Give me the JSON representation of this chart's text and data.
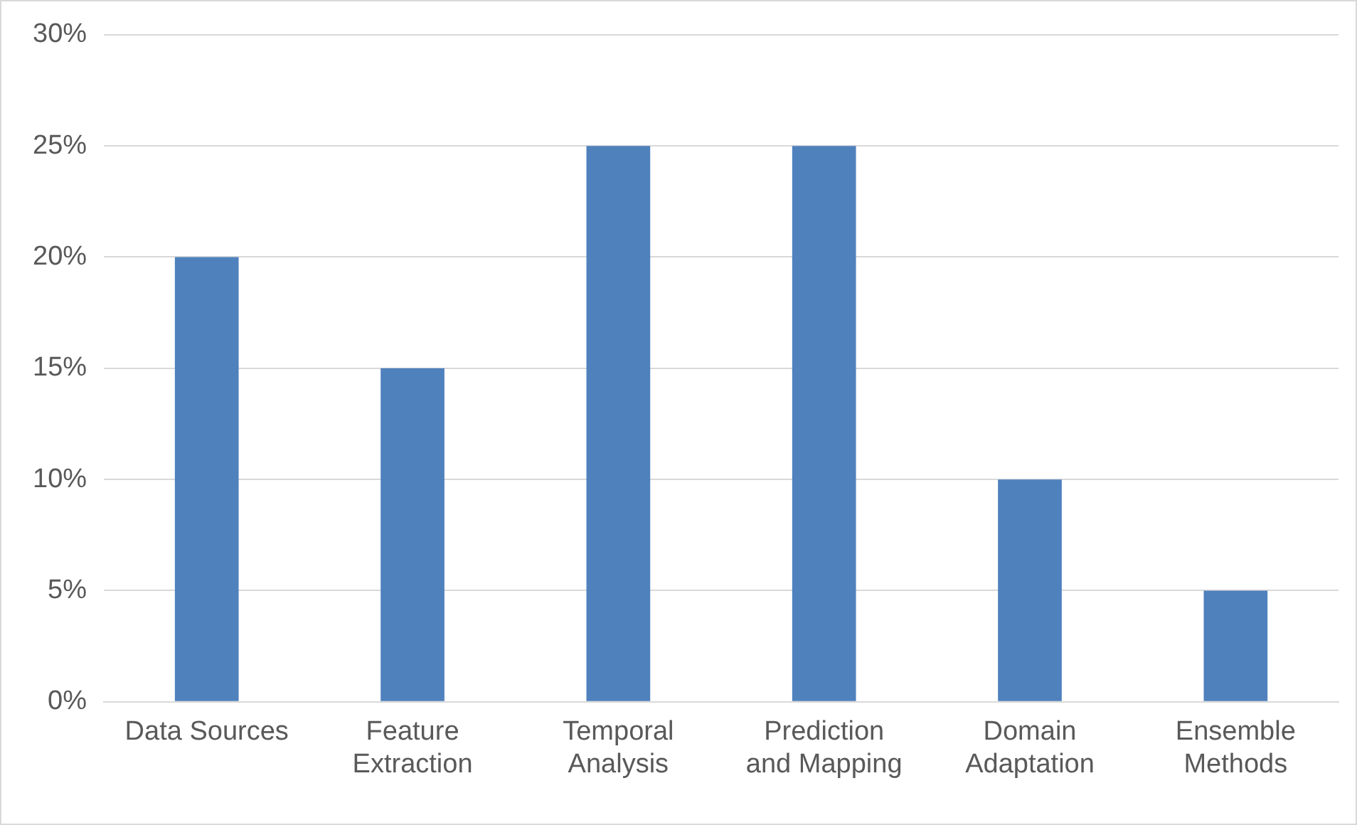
{
  "chart_data": {
    "type": "bar",
    "categories": [
      "Data Sources",
      "Feature\nExtraction",
      "Temporal\nAnalysis",
      "Prediction\nand Mapping",
      "Domain\nAdaptation",
      "Ensemble\nMethods"
    ],
    "values": [
      20,
      15,
      25,
      25,
      10,
      5
    ],
    "color": "#4f81bd",
    "ylim": [
      0,
      30
    ],
    "yticks": [
      {
        "value": 0,
        "label": "0%"
      },
      {
        "value": 5,
        "label": "5%"
      },
      {
        "value": 10,
        "label": "10%"
      },
      {
        "value": 15,
        "label": "15%"
      },
      {
        "value": 20,
        "label": "20%"
      },
      {
        "value": 25,
        "label": "25%"
      },
      {
        "value": 30,
        "label": "30%"
      }
    ],
    "grid": "y"
  }
}
